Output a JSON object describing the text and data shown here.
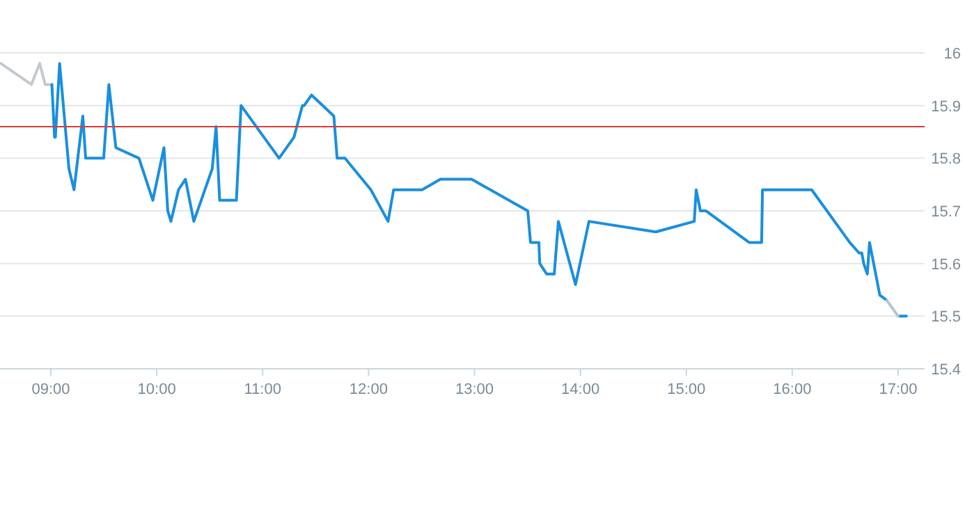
{
  "chart_data": {
    "type": "line",
    "xlim": [
      8.52,
      17.25
    ],
    "ylim": [
      15.4,
      16
    ],
    "xticks": [
      {
        "value": 9,
        "label": "09:00"
      },
      {
        "value": 10,
        "label": "10:00"
      },
      {
        "value": 11,
        "label": "11:00"
      },
      {
        "value": 12,
        "label": "12:00"
      },
      {
        "value": 13,
        "label": "13:00"
      },
      {
        "value": 14,
        "label": "14:00"
      },
      {
        "value": 15,
        "label": "15:00"
      },
      {
        "value": 16,
        "label": "16:00"
      },
      {
        "value": 17,
        "label": "17:00"
      }
    ],
    "yticks": [
      15.4,
      15.5,
      15.6,
      15.7,
      15.8,
      15.9,
      16
    ],
    "grid": "y",
    "marker": "none",
    "line_style": "solid",
    "ref_lines": [
      {
        "axis": "y",
        "value": 15.86,
        "label": null,
        "color": "#e03a3a"
      }
    ],
    "series": [
      {
        "color": "#c3cacf",
        "x": [
          8.527,
          8.816,
          8.895,
          8.947,
          9.0,
          9.01
        ],
        "values": [
          15.98,
          15.94,
          15.98,
          15.94,
          15.94,
          15.94
        ]
      },
      {
        "color": "#1a8fdd",
        "x": [
          9.01,
          9.035,
          9.043,
          9.083,
          9.171,
          9.219,
          9.302,
          9.329,
          9.499,
          9.548,
          9.614,
          9.832,
          9.963,
          10.068,
          10.104,
          10.134,
          10.205,
          10.271,
          10.35,
          10.524,
          10.56,
          10.594,
          10.752,
          10.796,
          11.155,
          11.296,
          11.375,
          11.392,
          11.461,
          11.672,
          11.703,
          11.777,
          12.022,
          12.184,
          12.236,
          12.505,
          12.679,
          12.972,
          13.503,
          13.529,
          13.608,
          13.616,
          13.682,
          13.753,
          13.792,
          13.954,
          14.081,
          14.712,
          15.075,
          15.093,
          15.133,
          15.185,
          15.593,
          15.711,
          15.719,
          16.184,
          16.543,
          16.631,
          16.657,
          16.675,
          16.709,
          16.73,
          16.827,
          16.893,
          16.95,
          17.0,
          17.077
        ],
        "values": [
          15.94,
          15.84,
          15.84,
          15.98,
          15.78,
          15.74,
          15.88,
          15.8,
          15.8,
          15.94,
          15.82,
          15.8,
          15.72,
          15.82,
          15.7,
          15.68,
          15.74,
          15.76,
          15.68,
          15.78,
          15.86,
          15.72,
          15.72,
          15.9,
          15.8,
          15.84,
          15.9,
          15.9,
          15.92,
          15.88,
          15.8,
          15.8,
          15.74,
          15.68,
          15.74,
          15.74,
          15.76,
          15.76,
          15.7,
          15.64,
          15.64,
          15.6,
          15.58,
          15.58,
          15.68,
          15.56,
          15.68,
          15.66,
          15.68,
          15.74,
          15.7,
          15.7,
          15.64,
          15.64,
          15.74,
          15.74,
          15.64,
          15.62,
          15.62,
          15.6,
          15.58,
          15.64,
          15.54,
          15.53,
          null,
          15.5,
          15.5
        ]
      },
      {
        "color": "#b4c4d0",
        "x": [
          16.893,
          17.0
        ],
        "values": [
          15.53,
          15.5
        ]
      }
    ]
  }
}
